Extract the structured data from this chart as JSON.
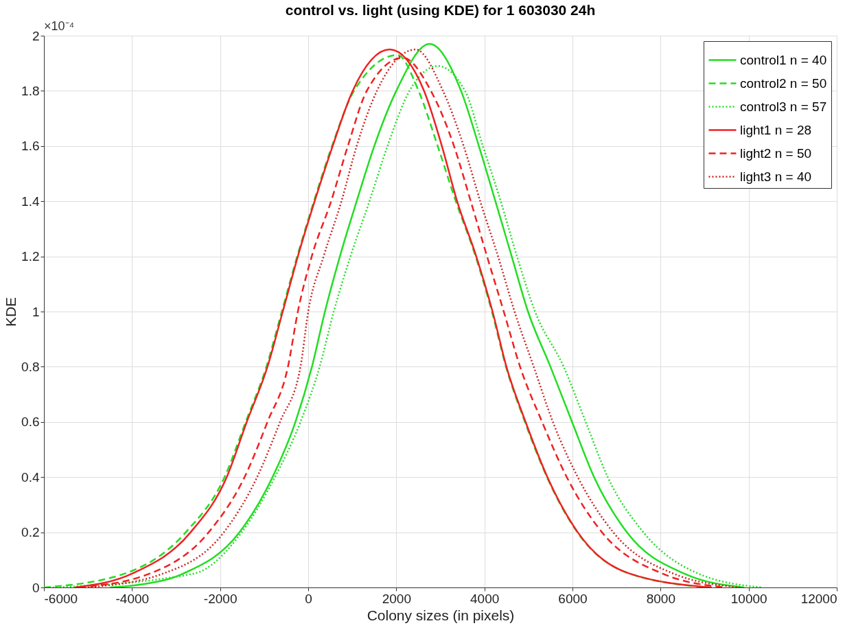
{
  "chart_data": {
    "type": "line",
    "title": "control vs. light (using KDE) for  1 603030 24h",
    "xlabel": "Colony sizes (in pixels)",
    "ylabel": "KDE",
    "annotations": [
      "×10⁻⁴"
    ],
    "xlim": [
      -6000,
      12000
    ],
    "ylim": [
      0,
      2
    ],
    "xticks": [
      -6000,
      -4000,
      -2000,
      0,
      2000,
      4000,
      6000,
      8000,
      10000,
      12000
    ],
    "yticks": [
      0,
      0.2,
      0.4,
      0.6,
      0.8,
      1,
      1.2,
      1.4,
      1.6,
      1.8,
      2
    ],
    "grid": true,
    "legend": "top right",
    "marker": "none",
    "series": [
      {
        "name": "control1 n = 40",
        "color": "#22dd22",
        "line_style": "solid",
        "x": [
          -4500,
          -3830,
          -2840,
          -1560,
          -810,
          -290,
          85,
          380,
          720,
          1100,
          1500,
          2000,
          2755,
          3470,
          3875,
          4250,
          4620,
          4990,
          5500,
          5990,
          6490,
          7235,
          8540,
          9900
        ],
        "values": [
          0,
          0.01,
          0.05,
          0.2,
          0.4,
          0.6,
          0.8,
          1.0,
          1.2,
          1.4,
          1.6,
          1.8,
          1.97,
          1.8,
          1.6,
          1.4,
          1.2,
          1.0,
          0.8,
          0.6,
          0.4,
          0.2,
          0.05,
          0
        ]
      },
      {
        "name": "control2 n = 50",
        "color": "#22dd22",
        "line_style": "dashed",
        "x": [
          -6000,
          -4170,
          -2780,
          -1900,
          -1420,
          -950,
          -600,
          -250,
          130,
          540,
          1040,
          2030,
          2505,
          2940,
          3350,
          3800,
          4170,
          4490,
          4920,
          5420,
          6110,
          7300,
          9100
        ],
        "values": [
          0,
          0.05,
          0.2,
          0.4,
          0.6,
          0.8,
          1.0,
          1.2,
          1.4,
          1.6,
          1.8,
          1.93,
          1.8,
          1.6,
          1.4,
          1.2,
          1.0,
          0.8,
          0.6,
          0.4,
          0.2,
          0.05,
          0
        ]
      },
      {
        "name": "control3 n = 57",
        "color": "#22dd22",
        "line_style": "dotted",
        "x": [
          -5800,
          -2600,
          -1510,
          -755,
          -175,
          260,
          580,
          960,
          1390,
          1800,
          2300,
          2940,
          3560,
          3965,
          4370,
          4740,
          5150,
          5800,
          6300,
          6800,
          7610,
          8860,
          10300
        ],
        "values": [
          0,
          0.05,
          0.2,
          0.4,
          0.6,
          0.8,
          1.0,
          1.2,
          1.4,
          1.6,
          1.8,
          1.89,
          1.8,
          1.6,
          1.4,
          1.2,
          1.0,
          0.8,
          0.6,
          0.4,
          0.2,
          0.05,
          0
        ]
      },
      {
        "name": "light1 n = 28",
        "color": "#ee2222",
        "line_style": "solid",
        "x": [
          -5300,
          -4000,
          -2670,
          -1850,
          -1395,
          -925,
          -578,
          -235,
          146,
          555,
          1010,
          1850,
          2630,
          3035,
          3380,
          3815,
          4185,
          4500,
          4935,
          5430,
          6120,
          7300,
          9160
        ],
        "values": [
          0,
          0.05,
          0.2,
          0.4,
          0.6,
          0.8,
          1.0,
          1.2,
          1.4,
          1.6,
          1.8,
          1.95,
          1.8,
          1.6,
          1.4,
          1.2,
          1.0,
          0.8,
          0.6,
          0.4,
          0.2,
          0.05,
          0
        ]
      },
      {
        "name": "light2 n = 50",
        "color": "#ee2222",
        "line_style": "dashed",
        "x": [
          -5200,
          -3600,
          -2260,
          -1445,
          -925,
          -460,
          -235,
          80,
          520,
          900,
          1330,
          2150,
          2785,
          3310,
          3690,
          4060,
          4440,
          4810,
          5310,
          5870,
          6670,
          8045,
          9480
        ],
        "values": [
          0,
          0.05,
          0.2,
          0.4,
          0.6,
          0.8,
          1.0,
          1.2,
          1.4,
          1.6,
          1.8,
          1.92,
          1.8,
          1.6,
          1.4,
          1.2,
          1.0,
          0.8,
          0.6,
          0.4,
          0.2,
          0.05,
          0
        ]
      },
      {
        "name": "light3 n = 40",
        "color": "#cc2222",
        "line_style": "dotted",
        "x": [
          -5000,
          -3300,
          -1915,
          -1160,
          -640,
          -175,
          0,
          350,
          755,
          1100,
          1560,
          2440,
          3060,
          3530,
          3905,
          4310,
          4685,
          5120,
          5555,
          6120,
          6925,
          8295,
          9800
        ],
        "values": [
          0,
          0.05,
          0.2,
          0.4,
          0.6,
          0.8,
          1.0,
          1.2,
          1.4,
          1.6,
          1.8,
          1.95,
          1.8,
          1.6,
          1.4,
          1.2,
          1.0,
          0.8,
          0.6,
          0.4,
          0.2,
          0.05,
          0
        ]
      }
    ]
  }
}
